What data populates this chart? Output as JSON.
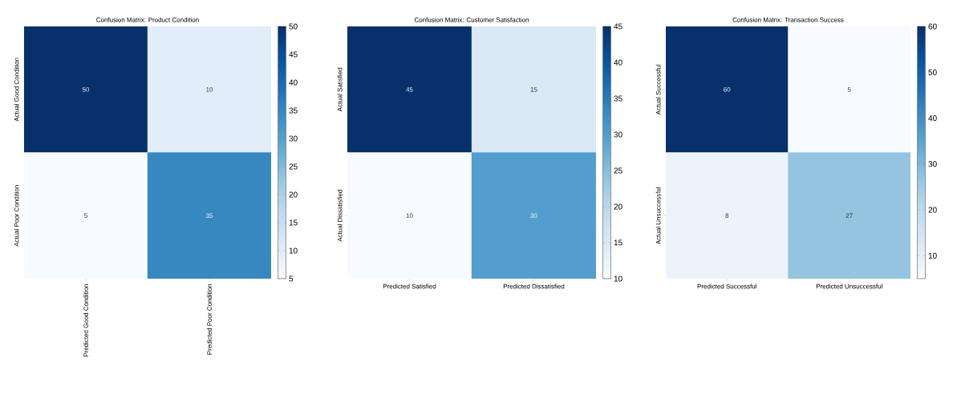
{
  "chart_data": [
    {
      "type": "heatmap",
      "title": "Confusion Matrix: Product Condition",
      "categories": [
        "Predicted Good Condition",
        "Predicted Poor Condition"
      ],
      "y_categories": [
        "Actual Good Condition",
        "Actual Poor Condition"
      ],
      "cells": [
        [
          50,
          10
        ],
        [
          5,
          35
        ]
      ],
      "clim": [
        5,
        50
      ],
      "cticks": [
        5,
        10,
        15,
        20,
        25,
        30,
        35,
        40,
        45,
        50
      ],
      "data_labels": true
    },
    {
      "type": "heatmap",
      "title": "Confusion Matrix: Customer Satisfaction",
      "categories": [
        "Predicted Satisfied",
        "Predicted Dissatisfied"
      ],
      "y_categories": [
        "Actual Satisfied",
        "Actual Dissatisfied"
      ],
      "cells": [
        [
          45,
          15
        ],
        [
          10,
          30
        ]
      ],
      "clim": [
        10,
        45
      ],
      "cticks": [
        10,
        15,
        20,
        25,
        30,
        35,
        40,
        45
      ],
      "data_labels": true
    },
    {
      "type": "heatmap",
      "title": "Confusion Matrix: Transaction Success",
      "categories": [
        "Predicted Successful",
        "Predicted Unsuccessful"
      ],
      "y_categories": [
        "Actual Successful",
        "Actual Unsuccessful"
      ],
      "cells": [
        [
          60,
          5
        ],
        [
          8,
          27
        ]
      ],
      "clim": [
        5,
        60
      ],
      "cticks": [
        10,
        20,
        30,
        40,
        50,
        60
      ],
      "data_labels": true
    }
  ]
}
